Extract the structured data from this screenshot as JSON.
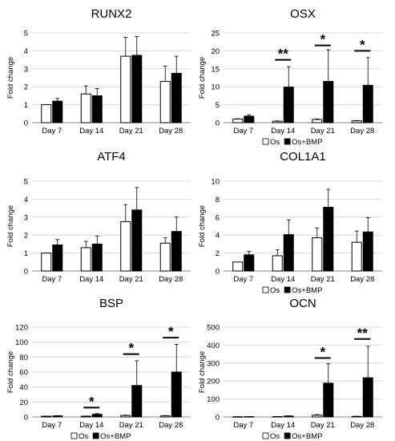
{
  "figure_title": "",
  "chart_data": [
    {
      "type": "bar",
      "title": "RUNX2",
      "categories": [
        "Day 7",
        "Day 14",
        "Day 21",
        "Day 28"
      ],
      "ylabel": "Fold change",
      "ylim": [
        0,
        5
      ],
      "yticks": [
        0,
        1,
        2,
        3,
        4,
        5
      ],
      "series": [
        {
          "name": "Os",
          "color": "#ffffff",
          "values": [
            1.0,
            1.6,
            3.7,
            2.3
          ],
          "errors": [
            0.0,
            0.45,
            1.05,
            0.85
          ]
        },
        {
          "name": "Os+BMP",
          "color": "#000000",
          "values": [
            1.2,
            1.5,
            3.75,
            2.75
          ],
          "errors": [
            0.15,
            0.4,
            1.05,
            0.95
          ]
        }
      ],
      "annotations": [],
      "show_legend": false
    },
    {
      "type": "bar",
      "title": "OSX",
      "categories": [
        "Day 7",
        "Day 14",
        "Day 21",
        "Day 28"
      ],
      "ylabel": "Fold change",
      "ylim": [
        0,
        25
      ],
      "yticks": [
        0,
        5,
        10,
        15,
        20,
        25
      ],
      "series": [
        {
          "name": "Os",
          "color": "#ffffff",
          "values": [
            1.0,
            0.4,
            0.9,
            0.5
          ],
          "errors": [
            0.1,
            0.1,
            0.15,
            0.1
          ]
        },
        {
          "name": "Os+BMP",
          "color": "#000000",
          "values": [
            1.8,
            9.9,
            11.5,
            10.4
          ],
          "errors": [
            0.4,
            5.7,
            8.8,
            7.7
          ]
        }
      ],
      "annotations": [
        {
          "category": "Day 14",
          "text": "**",
          "y": 17.5
        },
        {
          "category": "Day 21",
          "text": "*",
          "y": 21.5
        },
        {
          "category": "Day 28",
          "text": "*",
          "y": 20.0
        }
      ],
      "show_legend": true
    },
    {
      "type": "bar",
      "title": "ATF4",
      "categories": [
        "Day 7",
        "Day 14",
        "Day 21",
        "Day 28"
      ],
      "ylabel": "Fold change",
      "ylim": [
        0,
        5
      ],
      "yticks": [
        0,
        1,
        2,
        3,
        4,
        5
      ],
      "series": [
        {
          "name": "Os",
          "color": "#ffffff",
          "values": [
            1.0,
            1.3,
            2.75,
            1.55
          ],
          "errors": [
            0.0,
            0.35,
            0.95,
            0.3
          ]
        },
        {
          "name": "Os+BMP",
          "color": "#000000",
          "values": [
            1.45,
            1.5,
            3.4,
            2.2
          ],
          "errors": [
            0.3,
            0.45,
            1.25,
            0.8
          ]
        }
      ],
      "annotations": [],
      "show_legend": false
    },
    {
      "type": "bar",
      "title": "COL1A1",
      "categories": [
        "Day 7",
        "Day 14",
        "Day 21",
        "Day 28"
      ],
      "ylabel": "Fold change",
      "ylim": [
        0,
        10
      ],
      "yticks": [
        0,
        2,
        4,
        6,
        8,
        10
      ],
      "series": [
        {
          "name": "Os",
          "color": "#ffffff",
          "values": [
            1.0,
            1.7,
            3.7,
            3.2
          ],
          "errors": [
            0.0,
            0.65,
            1.1,
            1.25
          ]
        },
        {
          "name": "Os+BMP",
          "color": "#000000",
          "values": [
            1.8,
            4.05,
            7.1,
            4.35
          ],
          "errors": [
            0.4,
            1.65,
            2.0,
            1.6
          ]
        }
      ],
      "annotations": [],
      "show_legend": true
    },
    {
      "type": "bar",
      "title": "BSP",
      "categories": [
        "Day 7",
        "Day 14",
        "Day 21",
        "Day 28"
      ],
      "ylabel": "Fold change",
      "ylim": [
        0,
        120
      ],
      "yticks": [
        0,
        20,
        40,
        60,
        80,
        100,
        120
      ],
      "series": [
        {
          "name": "Os",
          "color": "#ffffff",
          "values": [
            1.0,
            1.0,
            2.0,
            1.5
          ],
          "errors": [
            0.2,
            0.3,
            0.5,
            0.4
          ]
        },
        {
          "name": "Os+BMP",
          "color": "#000000",
          "values": [
            1.5,
            3.5,
            42.0,
            60.0
          ],
          "errors": [
            0.3,
            1.0,
            33.0,
            37.0
          ]
        }
      ],
      "annotations": [
        {
          "category": "Day 14",
          "text": "*",
          "y": 12.5
        },
        {
          "category": "Day 21",
          "text": "*",
          "y": 84.0
        },
        {
          "category": "Day 28",
          "text": "*",
          "y": 106.0
        }
      ],
      "show_legend": true
    },
    {
      "type": "bar",
      "title": "OCN",
      "categories": [
        "Day 7",
        "Day 14",
        "Day 21",
        "Day 28"
      ],
      "ylabel": "Fold change",
      "ylim": [
        0,
        500
      ],
      "yticks": [
        0,
        100,
        200,
        300,
        400,
        500
      ],
      "series": [
        {
          "name": "Os",
          "color": "#ffffff",
          "values": [
            1.0,
            2.0,
            10.0,
            3.0
          ],
          "errors": [
            0.2,
            0.5,
            3.0,
            1.0
          ]
        },
        {
          "name": "Os+BMP",
          "color": "#000000",
          "values": [
            1.5,
            5.0,
            188.0,
            218.0
          ],
          "errors": [
            0.4,
            1.5,
            108.0,
            175.0
          ]
        }
      ],
      "annotations": [
        {
          "category": "Day 21",
          "text": "*",
          "y": 328.0
        },
        {
          "category": "Day 28",
          "text": "**",
          "y": 434.0
        }
      ],
      "show_legend": true
    }
  ]
}
